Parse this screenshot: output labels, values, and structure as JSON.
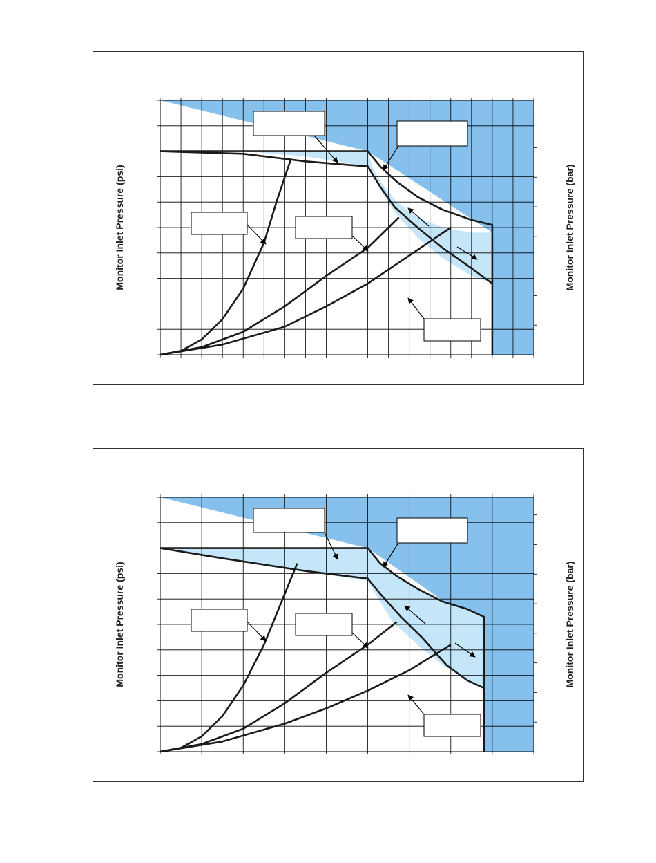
{
  "labels": {
    "left_axis": "Monitor Inlet Pressure (psi)",
    "right_axis": "Monitor Inlet Pressure (bar)"
  },
  "colors": {
    "dark_region": "#85c1ec",
    "light_region": "#c5e5f8",
    "grid": "#000000",
    "curve": "#1a1a1a"
  },
  "chart_data": [
    {
      "type": "line",
      "title": "",
      "xlabel": "",
      "ylabel": "Monitor Inlet Pressure (psi)",
      "y2label": "Monitor Inlet Pressure (bar)",
      "x_grid_divisions": 18,
      "y_grid_divisions": 10,
      "xlim": [
        0,
        18
      ],
      "ylim": [
        0,
        10
      ],
      "grid": true,
      "tick_labels": "not printed",
      "regions": [
        {
          "fill": "dark",
          "points": [
            [
              0,
              10
            ],
            [
              18,
              10
            ],
            [
              18,
              0
            ],
            [
              16,
              0
            ],
            [
              16,
              4.8
            ],
            [
              10,
              8
            ]
          ]
        },
        {
          "fill": "light",
          "points": [
            [
              10,
              8
            ],
            [
              10.2,
              7.4
            ],
            [
              10.6,
              6.8
            ],
            [
              11.4,
              6.0
            ],
            [
              12.4,
              5.4
            ],
            [
              13.6,
              5.0
            ],
            [
              15,
              4.8
            ],
            [
              16,
              4.8
            ],
            [
              16,
              2.8
            ],
            [
              15,
              3.1
            ],
            [
              13.6,
              3.8
            ],
            [
              12.4,
              4.6
            ],
            [
              11.3,
              5.6
            ],
            [
              10.6,
              6.5
            ],
            [
              10,
              7.4
            ],
            [
              7,
              7.8
            ],
            [
              4,
              8
            ],
            [
              0,
              8
            ]
          ]
        }
      ],
      "series": [
        {
          "values_xy": [
            [
              0,
              8
            ],
            [
              10,
              8
            ],
            [
              10.6,
              7.4
            ],
            [
              11.4,
              6.8
            ],
            [
              12.4,
              6.2
            ],
            [
              13.6,
              5.7
            ],
            [
              15,
              5.3
            ],
            [
              16,
              5.1
            ],
            [
              16,
              0
            ]
          ]
        },
        {
          "values_xy": [
            [
              0,
              8
            ],
            [
              4,
              7.9
            ],
            [
              7,
              7.6
            ],
            [
              10,
              7.4
            ],
            [
              10.6,
              6.6
            ],
            [
              11.3,
              5.8
            ],
            [
              12.4,
              5.0
            ],
            [
              13.6,
              4.2
            ],
            [
              15,
              3.4
            ],
            [
              16,
              2.8
            ]
          ]
        },
        {
          "values_xy": [
            [
              0,
              0
            ],
            [
              1,
              0.15
            ],
            [
              2,
              0.6
            ],
            [
              3,
              1.4
            ],
            [
              4,
              2.6
            ],
            [
              5,
              4.4
            ],
            [
              5.6,
              6.0
            ],
            [
              6.3,
              7.7
            ]
          ]
        },
        {
          "values_xy": [
            [
              0,
              0
            ],
            [
              2,
              0.3
            ],
            [
              4,
              0.9
            ],
            [
              6,
              1.9
            ],
            [
              8,
              3.1
            ],
            [
              10,
              4.2
            ],
            [
              11.5,
              5.4
            ]
          ]
        },
        {
          "values_xy": [
            [
              0,
              0
            ],
            [
              3,
              0.4
            ],
            [
              6,
              1.1
            ],
            [
              8,
              1.9
            ],
            [
              10,
              2.8
            ],
            [
              12,
              3.9
            ],
            [
              14,
              5.0
            ]
          ]
        }
      ],
      "annotation_boxes": [
        {
          "text": ""
        },
        {
          "text": ""
        },
        {
          "text": ""
        },
        {
          "text": ""
        },
        {
          "text": ""
        }
      ]
    },
    {
      "type": "line",
      "title": "",
      "xlabel": "",
      "ylabel": "Monitor Inlet Pressure (psi)",
      "y2label": "Monitor Inlet Pressure (bar)",
      "x_grid_divisions": 9,
      "y_grid_divisions": 10,
      "xlim": [
        0,
        9
      ],
      "ylim": [
        0,
        10
      ],
      "grid": true,
      "tick_labels": "not printed",
      "regions": [
        {
          "fill": "dark",
          "points": [
            [
              0,
              10
            ],
            [
              9,
              10
            ],
            [
              9,
              0
            ],
            [
              7.8,
              0
            ],
            [
              7.8,
              4.8
            ],
            [
              5,
              8
            ]
          ]
        },
        {
          "fill": "light",
          "points": [
            [
              5,
              8
            ],
            [
              5.3,
              7.4
            ],
            [
              5.7,
              6.9
            ],
            [
              6.2,
              6.4
            ],
            [
              6.8,
              5.9
            ],
            [
              7.4,
              5.6
            ],
            [
              7.8,
              5.3
            ],
            [
              7.8,
              2.5
            ],
            [
              7.3,
              2.9
            ],
            [
              6.8,
              3.4
            ],
            [
              6.2,
              4.2
            ],
            [
              5.6,
              5.1
            ],
            [
              5,
              6.7
            ],
            [
              3.5,
              7.1
            ],
            [
              1.5,
              7.6
            ],
            [
              0,
              8
            ]
          ]
        }
      ],
      "series": [
        {
          "values_xy": [
            [
              0,
              8
            ],
            [
              5,
              8
            ],
            [
              5.3,
              7.4
            ],
            [
              5.7,
              6.9
            ],
            [
              6.2,
              6.4
            ],
            [
              6.8,
              5.9
            ],
            [
              7.4,
              5.6
            ],
            [
              7.8,
              5.3
            ],
            [
              7.8,
              0
            ]
          ]
        },
        {
          "values_xy": [
            [
              0,
              8
            ],
            [
              1.5,
              7.6
            ],
            [
              3.5,
              7.1
            ],
            [
              5,
              6.8
            ],
            [
              5.3,
              6.2
            ],
            [
              5.8,
              5.3
            ],
            [
              6.3,
              4.5
            ],
            [
              6.9,
              3.4
            ],
            [
              7.4,
              2.8
            ],
            [
              7.8,
              2.5
            ]
          ]
        },
        {
          "values_xy": [
            [
              0,
              0
            ],
            [
              0.5,
              0.15
            ],
            [
              1,
              0.6
            ],
            [
              1.5,
              1.4
            ],
            [
              2,
              2.6
            ],
            [
              2.5,
              4.2
            ],
            [
              2.9,
              5.8
            ],
            [
              3.3,
              7.4
            ]
          ]
        },
        {
          "values_xy": [
            [
              0,
              0
            ],
            [
              1,
              0.3
            ],
            [
              2,
              0.9
            ],
            [
              3,
              1.9
            ],
            [
              4,
              3.1
            ],
            [
              5,
              4.2
            ],
            [
              5.7,
              5.1
            ]
          ]
        },
        {
          "values_xy": [
            [
              0,
              0
            ],
            [
              1.5,
              0.4
            ],
            [
              3,
              1.1
            ],
            [
              4,
              1.7
            ],
            [
              5,
              2.4
            ],
            [
              6,
              3.2
            ],
            [
              7,
              4.2
            ]
          ]
        }
      ],
      "annotation_boxes": [
        {
          "text": ""
        },
        {
          "text": ""
        },
        {
          "text": ""
        },
        {
          "text": ""
        },
        {
          "text": ""
        }
      ]
    }
  ]
}
